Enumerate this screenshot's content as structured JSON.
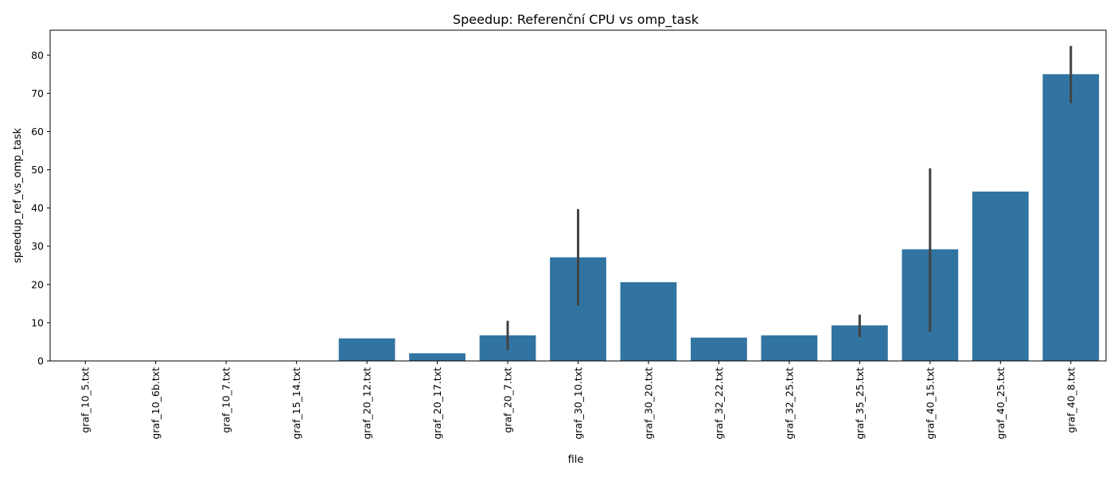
{
  "chart_data": {
    "type": "bar",
    "title": "Speedup: Referenční CPU vs omp_task",
    "xlabel": "file",
    "ylabel": "speedup_ref_vs_omp_task",
    "categories": [
      "graf_10_5.txt",
      "graf_10_6b.txt",
      "graf_10_7.txt",
      "graf_15_14.txt",
      "graf_20_12.txt",
      "graf_20_17.txt",
      "graf_20_7.txt",
      "graf_30_10.txt",
      "graf_30_20.txt",
      "graf_32_22.txt",
      "graf_32_25.txt",
      "graf_35_25.txt",
      "graf_40_15.txt",
      "graf_40_25.txt",
      "graf_40_8.txt"
    ],
    "values": [
      0.0,
      0.0,
      0.0,
      0.0,
      5.9,
      2.0,
      6.7,
      27.1,
      20.6,
      6.1,
      6.7,
      9.3,
      29.2,
      44.3,
      75.0
    ],
    "error_bars": [
      null,
      null,
      null,
      null,
      null,
      null,
      [
        2.8,
        10.5
      ],
      [
        14.5,
        39.7
      ],
      null,
      null,
      null,
      [
        6.2,
        12.1
      ],
      [
        7.7,
        50.4
      ],
      null,
      [
        67.4,
        82.4
      ]
    ],
    "ylim": [
      0,
      86.5
    ],
    "yticks": [
      0,
      10,
      20,
      30,
      40,
      50,
      60,
      70,
      80
    ],
    "grid": false,
    "bar_color": "#3274a1",
    "error_color": "#424242"
  }
}
